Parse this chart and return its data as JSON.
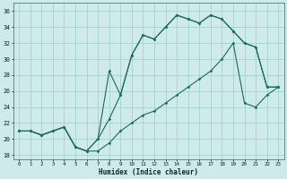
{
  "xlabel": "Humidex (Indice chaleur)",
  "bg_color": "#ceeaea",
  "grid_color": "#9bcece",
  "line_color": "#1a6b5a",
  "xlim": [
    -0.5,
    23.5
  ],
  "ylim": [
    17.5,
    37.0
  ],
  "yticks": [
    18,
    20,
    22,
    24,
    26,
    28,
    30,
    32,
    34,
    36
  ],
  "xticks": [
    0,
    1,
    2,
    3,
    4,
    5,
    6,
    7,
    8,
    9,
    10,
    11,
    12,
    13,
    14,
    15,
    16,
    17,
    18,
    19,
    20,
    21,
    22,
    23
  ],
  "line1_x": [
    0,
    1,
    2,
    3,
    4,
    5,
    6,
    7,
    8,
    9,
    10,
    11,
    12,
    13,
    14,
    15,
    16,
    17,
    18,
    19,
    20,
    21,
    22,
    23
  ],
  "line1_y": [
    21.0,
    21.0,
    20.5,
    21.0,
    21.5,
    19.0,
    18.5,
    20.0,
    28.5,
    25.5,
    30.5,
    33.0,
    32.5,
    34.0,
    35.5,
    35.0,
    34.5,
    35.5,
    35.0,
    33.5,
    32.0,
    31.5,
    26.5,
    26.5
  ],
  "line2_x": [
    0,
    1,
    2,
    3,
    4,
    5,
    6,
    7,
    8,
    9,
    10,
    11,
    12,
    13,
    14,
    15,
    16,
    17,
    18,
    19,
    20,
    21,
    22,
    23
  ],
  "line2_y": [
    21.0,
    21.0,
    20.5,
    21.0,
    21.5,
    19.0,
    18.5,
    20.0,
    22.5,
    25.5,
    30.5,
    33.0,
    32.5,
    34.0,
    35.5,
    35.0,
    34.5,
    35.5,
    35.0,
    33.5,
    32.0,
    31.5,
    26.5,
    26.5
  ],
  "line3_x": [
    0,
    1,
    2,
    3,
    4,
    5,
    6,
    7,
    8,
    9,
    10,
    11,
    12,
    13,
    14,
    15,
    16,
    17,
    18,
    19,
    20,
    21,
    22,
    23
  ],
  "line3_y": [
    21.0,
    21.0,
    20.5,
    21.0,
    21.5,
    19.0,
    18.5,
    18.5,
    19.5,
    21.0,
    22.0,
    23.0,
    23.5,
    24.5,
    25.5,
    26.5,
    27.5,
    28.5,
    30.0,
    32.0,
    24.5,
    24.0,
    25.5,
    26.5
  ]
}
